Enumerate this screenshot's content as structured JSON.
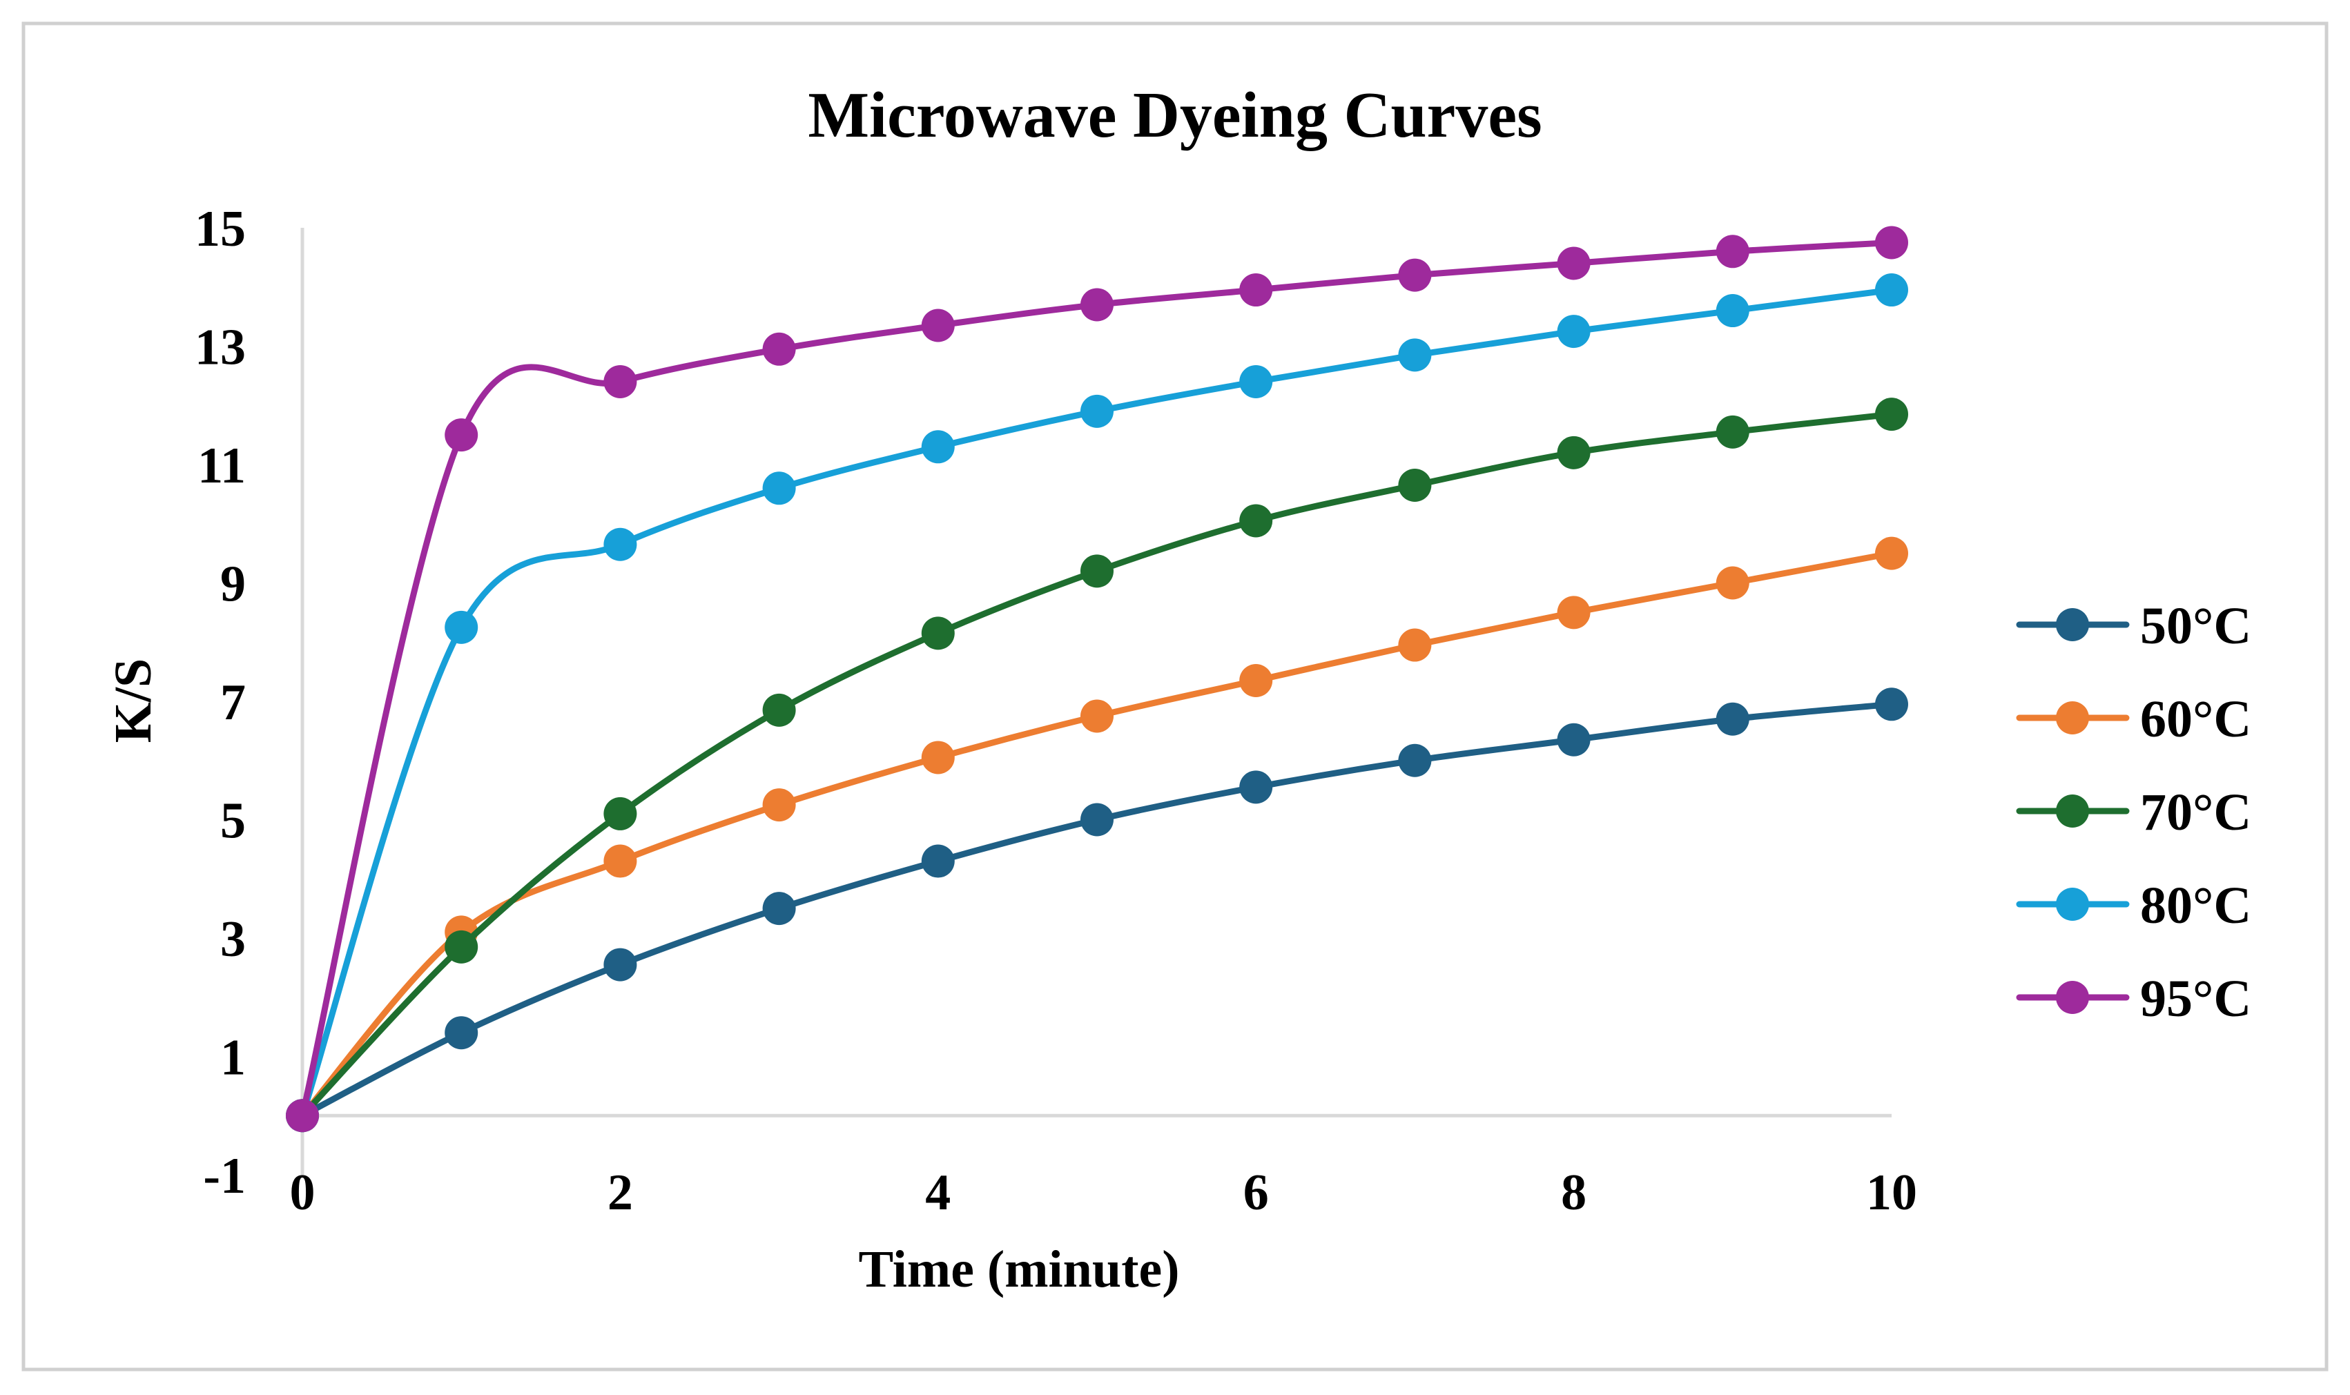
{
  "chart_data": {
    "type": "line",
    "title": "Microwave Dyeing Curves",
    "xlabel": "Time (minute)",
    "ylabel": "K/S",
    "xlim": [
      0,
      10
    ],
    "ylim": [
      -1,
      15
    ],
    "x_ticks": [
      0,
      2,
      4,
      6,
      8,
      10
    ],
    "y_ticks": [
      -1,
      1,
      3,
      5,
      7,
      9,
      11,
      13,
      15
    ],
    "x_tick_labels": [
      "0",
      "2",
      "4",
      "6",
      "8",
      "10"
    ],
    "y_tick_labels": [
      "-1",
      "1",
      "3",
      "5",
      "7",
      "9",
      "11",
      "13",
      "15"
    ],
    "grid": false,
    "legend_position": "right",
    "x": [
      0,
      1,
      2,
      3,
      4,
      5,
      6,
      7,
      8,
      9,
      10
    ],
    "series": [
      {
        "name": "50°C",
        "color": "#1f5f85",
        "values": [
          0,
          1.4,
          2.55,
          3.5,
          4.3,
          5.0,
          5.55,
          6.0,
          6.35,
          6.7,
          6.95
        ]
      },
      {
        "name": "60°C",
        "color": "#ed7d31",
        "values": [
          0,
          3.1,
          4.3,
          5.25,
          6.05,
          6.75,
          7.35,
          7.95,
          8.5,
          9.0,
          9.5
        ]
      },
      {
        "name": "70°C",
        "color": "#1e6e2f",
        "values": [
          0,
          2.85,
          5.1,
          6.85,
          8.15,
          9.2,
          10.05,
          10.65,
          11.2,
          11.55,
          11.85
        ]
      },
      {
        "name": "80°C",
        "color": "#17a0d8",
        "values": [
          0,
          8.25,
          9.65,
          10.6,
          11.3,
          11.9,
          12.4,
          12.85,
          13.25,
          13.6,
          13.95
        ]
      },
      {
        "name": "95°C",
        "color": "#9e2a9c",
        "values": [
          0,
          11.5,
          12.4,
          12.95,
          13.35,
          13.7,
          13.95,
          14.2,
          14.4,
          14.6,
          14.75
        ]
      }
    ]
  }
}
